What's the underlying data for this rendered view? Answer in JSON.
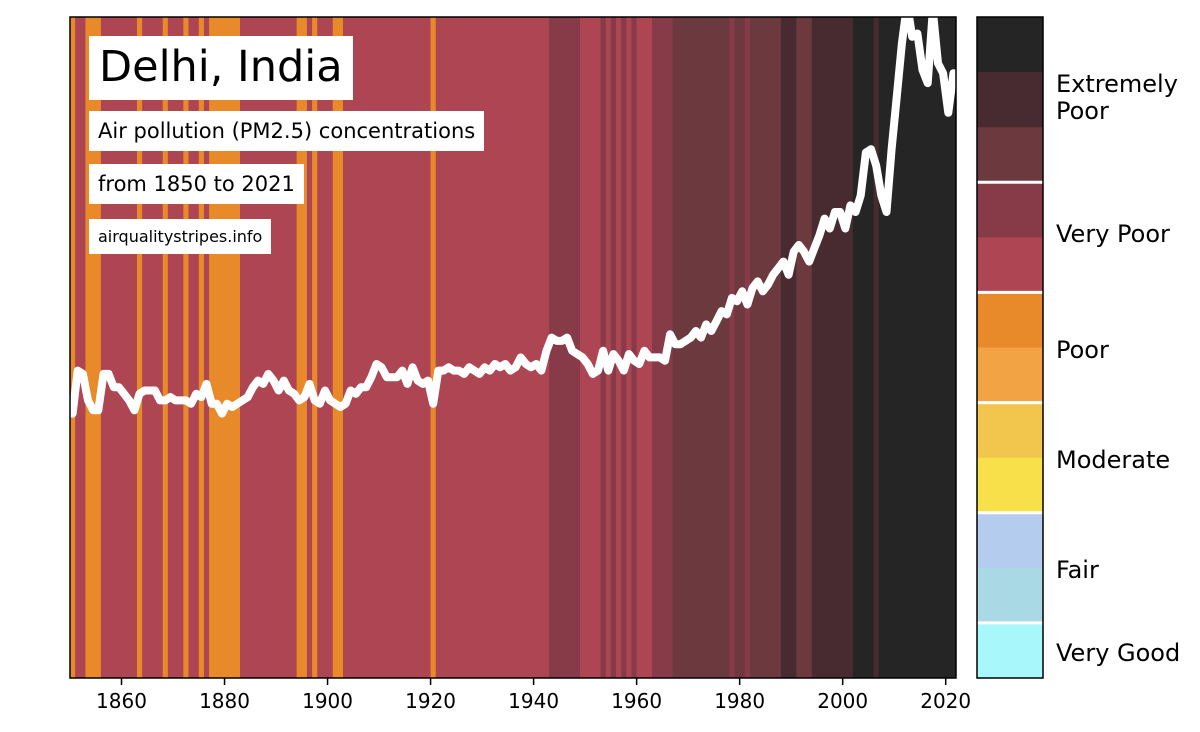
{
  "title": "Delhi, India",
  "subtitle_1": "Air pollution (PM2.5) concentrations",
  "subtitle_2": "from 1850 to 2021",
  "source": "airqualitystripes.info",
  "chart_data": {
    "type": "heatmap",
    "description_of_marks": "annual stripes colored by category + white line of relative PM2.5 level",
    "x_range": [
      1850,
      2022
    ],
    "x_ticks": [
      1860,
      1880,
      1900,
      1920,
      1940,
      1960,
      1980,
      2000,
      2020
    ],
    "line_value_range": [
      0,
      100
    ],
    "colors": {
      "poor": "#e8892a",
      "very_poor_light": "#ad4553",
      "very_poor_dark": "#873a48",
      "extremely_poor_light": "#6b393e",
      "extremely_poor_mid": "#482b30",
      "extremely_poor_dark": "#252525",
      "line": "#ffffff"
    },
    "stripes": [
      {
        "from": 1850,
        "to": 1851,
        "color": "#e8892a"
      },
      {
        "from": 1851,
        "to": 1853,
        "color": "#ad4553"
      },
      {
        "from": 1853,
        "to": 1856,
        "color": "#e8892a"
      },
      {
        "from": 1856,
        "to": 1863,
        "color": "#ad4553"
      },
      {
        "from": 1863,
        "to": 1864,
        "color": "#e8892a"
      },
      {
        "from": 1864,
        "to": 1868,
        "color": "#ad4553"
      },
      {
        "from": 1868,
        "to": 1869,
        "color": "#e8892a"
      },
      {
        "from": 1869,
        "to": 1872,
        "color": "#ad4553"
      },
      {
        "from": 1872,
        "to": 1873,
        "color": "#e8892a"
      },
      {
        "from": 1873,
        "to": 1875,
        "color": "#ad4553"
      },
      {
        "from": 1875,
        "to": 1876,
        "color": "#e8892a"
      },
      {
        "from": 1876,
        "to": 1877,
        "color": "#ad4553"
      },
      {
        "from": 1877,
        "to": 1883,
        "color": "#e8892a"
      },
      {
        "from": 1883,
        "to": 1894,
        "color": "#ad4553"
      },
      {
        "from": 1894,
        "to": 1896,
        "color": "#e8892a"
      },
      {
        "from": 1896,
        "to": 1897,
        "color": "#ad4553"
      },
      {
        "from": 1897,
        "to": 1898,
        "color": "#e8892a"
      },
      {
        "from": 1898,
        "to": 1901,
        "color": "#ad4553"
      },
      {
        "from": 1901,
        "to": 1903,
        "color": "#e8892a"
      },
      {
        "from": 1903,
        "to": 1920,
        "color": "#ad4553"
      },
      {
        "from": 1920,
        "to": 1921,
        "color": "#e8892a"
      },
      {
        "from": 1921,
        "to": 1943,
        "color": "#ad4553"
      },
      {
        "from": 1943,
        "to": 1949,
        "color": "#873a48"
      },
      {
        "from": 1949,
        "to": 1953,
        "color": "#ad4553"
      },
      {
        "from": 1953,
        "to": 1954,
        "color": "#873a48"
      },
      {
        "from": 1954,
        "to": 1955,
        "color": "#ad4553"
      },
      {
        "from": 1955,
        "to": 1956,
        "color": "#873a48"
      },
      {
        "from": 1956,
        "to": 1957,
        "color": "#ad4553"
      },
      {
        "from": 1957,
        "to": 1958,
        "color": "#873a48"
      },
      {
        "from": 1958,
        "to": 1959,
        "color": "#ad4553"
      },
      {
        "from": 1959,
        "to": 1960,
        "color": "#873a48"
      },
      {
        "from": 1960,
        "to": 1963,
        "color": "#ad4553"
      },
      {
        "from": 1963,
        "to": 1967,
        "color": "#873a48"
      },
      {
        "from": 1967,
        "to": 1978,
        "color": "#6b393e"
      },
      {
        "from": 1978,
        "to": 1979,
        "color": "#873a48"
      },
      {
        "from": 1979,
        "to": 1981,
        "color": "#6b393e"
      },
      {
        "from": 1981,
        "to": 1982,
        "color": "#873a48"
      },
      {
        "from": 1982,
        "to": 1988,
        "color": "#6b393e"
      },
      {
        "from": 1988,
        "to": 1991,
        "color": "#482b30"
      },
      {
        "from": 1991,
        "to": 1994,
        "color": "#6b393e"
      },
      {
        "from": 1994,
        "to": 2002,
        "color": "#482b30"
      },
      {
        "from": 2002,
        "to": 2006,
        "color": "#252525"
      },
      {
        "from": 2006,
        "to": 2007,
        "color": "#482b30"
      },
      {
        "from": 2007,
        "to": 2022,
        "color": "#252525"
      }
    ],
    "line": {
      "x": [
        1850,
        1851,
        1852,
        1853,
        1854,
        1855,
        1856,
        1857,
        1858,
        1859,
        1860,
        1861,
        1862,
        1863,
        1864,
        1865,
        1866,
        1867,
        1868,
        1869,
        1870,
        1871,
        1872,
        1873,
        1874,
        1875,
        1876,
        1877,
        1878,
        1879,
        1880,
        1881,
        1882,
        1883,
        1884,
        1885,
        1886,
        1887,
        1888,
        1889,
        1890,
        1891,
        1892,
        1893,
        1894,
        1895,
        1896,
        1897,
        1898,
        1899,
        1900,
        1901,
        1902,
        1903,
        1904,
        1905,
        1906,
        1907,
        1908,
        1909,
        1910,
        1911,
        1912,
        1913,
        1914,
        1915,
        1916,
        1917,
        1918,
        1919,
        1920,
        1921,
        1922,
        1923,
        1924,
        1925,
        1926,
        1927,
        1928,
        1929,
        1930,
        1931,
        1932,
        1933,
        1934,
        1935,
        1936,
        1937,
        1938,
        1939,
        1940,
        1941,
        1942,
        1943,
        1944,
        1945,
        1946,
        1947,
        1948,
        1949,
        1950,
        1951,
        1952,
        1953,
        1954,
        1955,
        1956,
        1957,
        1958,
        1959,
        1960,
        1961,
        1962,
        1963,
        1964,
        1965,
        1966,
        1967,
        1968,
        1969,
        1970,
        1971,
        1972,
        1973,
        1974,
        1975,
        1976,
        1977,
        1978,
        1979,
        1980,
        1981,
        1982,
        1983,
        1984,
        1985,
        1986,
        1987,
        1988,
        1989,
        1990,
        1991,
        1992,
        1993,
        1994,
        1995,
        1996,
        1997,
        1998,
        1999,
        2000,
        2001,
        2002,
        2003,
        2004,
        2005,
        2006,
        2007,
        2008,
        2009,
        2010,
        2011,
        2012,
        2013,
        2014,
        2015,
        2016,
        2017,
        2018,
        2019,
        2020,
        2021
      ],
      "y": [
        40.0,
        46.5,
        46.0,
        42.0,
        40.5,
        40.5,
        46.0,
        46.0,
        44.0,
        44.0,
        43.0,
        42.0,
        40.5,
        43.0,
        43.5,
        43.5,
        43.5,
        42.0,
        42.0,
        42.5,
        42.0,
        42.0,
        42.0,
        41.5,
        43.0,
        42.5,
        44.5,
        41.5,
        41.5,
        40.0,
        41.5,
        41.0,
        41.5,
        42.0,
        42.5,
        44.0,
        45.0,
        44.5,
        46.0,
        45.0,
        43.5,
        45.0,
        43.5,
        43.0,
        42.0,
        42.5,
        44.5,
        42.0,
        41.5,
        43.5,
        42.0,
        41.5,
        41.0,
        41.5,
        43.5,
        43.0,
        44.0,
        44.0,
        45.5,
        47.5,
        47.0,
        45.5,
        45.5,
        45.5,
        46.5,
        44.5,
        47.0,
        45.0,
        44.5,
        45.0,
        41.5,
        46.5,
        46.5,
        47.0,
        46.5,
        46.5,
        46.0,
        47.0,
        46.5,
        46.0,
        47.0,
        46.5,
        47.5,
        47.0,
        47.5,
        46.5,
        47.0,
        48.5,
        47.5,
        47.0,
        47.5,
        46.5,
        49.5,
        51.5,
        51.0,
        51.0,
        51.5,
        49.5,
        49.0,
        48.5,
        47.5,
        46.0,
        46.5,
        49.5,
        46.5,
        49.0,
        48.0,
        46.5,
        49.0,
        48.0,
        47.5,
        49.5,
        48.5,
        48.5,
        48.5,
        48.0,
        52.0,
        50.5,
        50.5,
        51.0,
        51.5,
        52.5,
        51.5,
        53.5,
        52.5,
        54.0,
        55.5,
        55.0,
        57.5,
        57.0,
        58.5,
        56.5,
        59.0,
        60.0,
        58.5,
        59.5,
        61.0,
        62.0,
        63.0,
        61.0,
        64.5,
        65.5,
        64.5,
        63.0,
        65.0,
        67.0,
        69.5,
        68.0,
        70.5,
        70.5,
        68.0,
        71.5,
        70.5,
        73.0,
        79.5,
        80.0,
        77.5,
        73.0,
        70.5,
        80.0,
        88.0,
        96.0,
        102.0,
        97.0,
        97.5,
        92.0,
        90.0,
        101.0,
        93.0,
        91.5,
        85.5,
        91.5
      ]
    },
    "legend": {
      "swatches": [
        {
          "color": "#252525",
          "group": "Extremely Poor"
        },
        {
          "color": "#482b30",
          "group": "Extremely Poor"
        },
        {
          "color": "#6b393e",
          "group": "Extremely Poor"
        },
        {
          "color": "#873a48",
          "group": "Very Poor"
        },
        {
          "color": "#ad4553",
          "group": "Very Poor"
        },
        {
          "color": "#e8892a",
          "group": "Poor"
        },
        {
          "color": "#f2a444",
          "group": "Poor"
        },
        {
          "color": "#f2c54c",
          "group": "Moderate"
        },
        {
          "color": "#f7e04a",
          "group": "Moderate"
        },
        {
          "color": "#b4cdee",
          "group": "Fair"
        },
        {
          "color": "#a9d9e5",
          "group": "Fair"
        },
        {
          "color": "#a8f7fa",
          "group": "Very Good"
        }
      ],
      "categories": [
        {
          "label_line1": "Extremely",
          "label_line2": "Poor"
        },
        {
          "label_line1": "Very Poor",
          "label_line2": ""
        },
        {
          "label_line1": "Poor",
          "label_line2": ""
        },
        {
          "label_line1": "Moderate",
          "label_line2": ""
        },
        {
          "label_line1": "Fair",
          "label_line2": ""
        },
        {
          "label_line1": "Very Good",
          "label_line2": ""
        }
      ]
    }
  }
}
